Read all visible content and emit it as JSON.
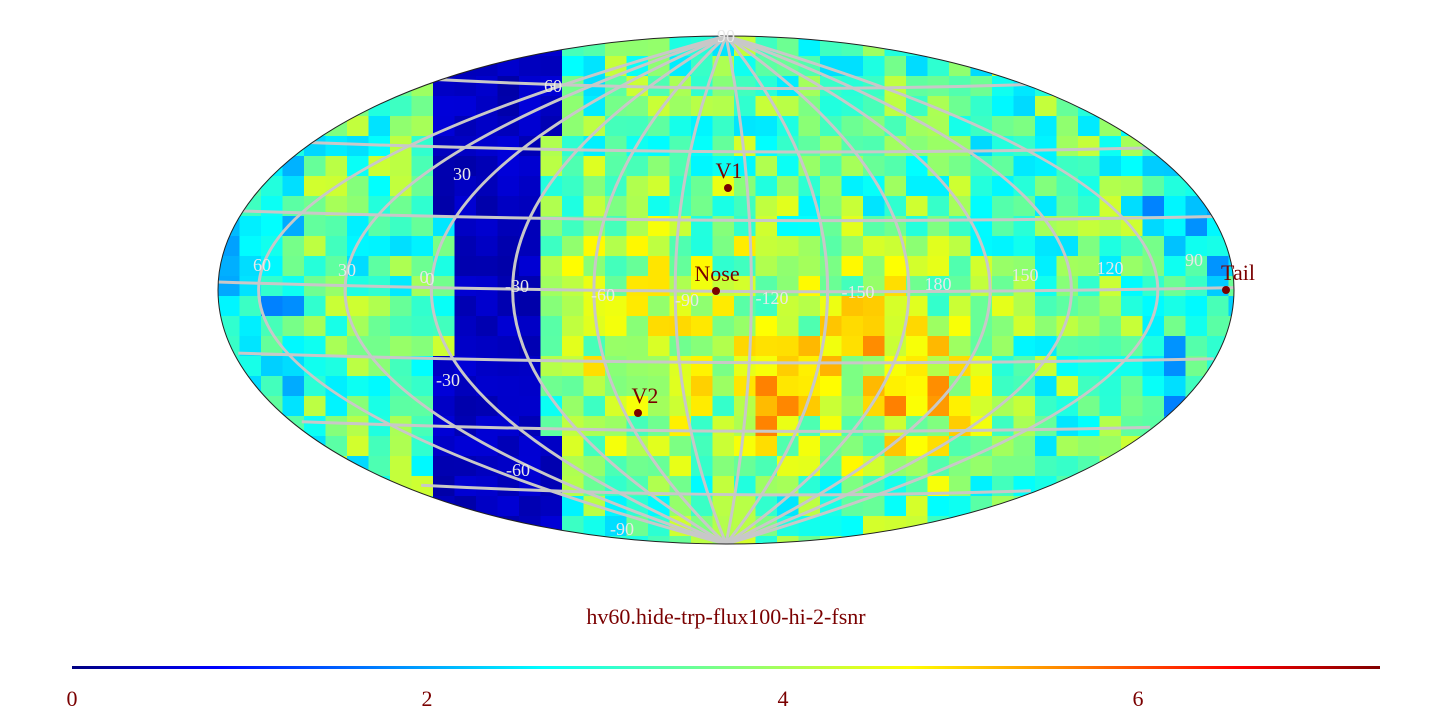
{
  "map": {
    "projection": "mollweide",
    "title": "hv60.hide-trp-flux100-hi-2-fsnr",
    "grid_color": "#c8c8c8",
    "marker_color": "#7a0000",
    "lat_labels": [
      "90",
      "60",
      "30",
      "0",
      "-30",
      "-60",
      "-90"
    ],
    "lon_labels": [
      "60",
      "30",
      "0",
      "-30",
      "-60",
      "-90",
      "-120",
      "-150",
      "180",
      "150",
      "120",
      "90"
    ],
    "markers": [
      {
        "label": "V1"
      },
      {
        "label": "Nose"
      },
      {
        "label": "Tail"
      },
      {
        "label": "V2"
      }
    ]
  },
  "colorbar": {
    "ticks": [
      "0",
      "2",
      "4",
      "6"
    ],
    "range": [
      0,
      7.35
    ],
    "colormap": "jet"
  }
}
